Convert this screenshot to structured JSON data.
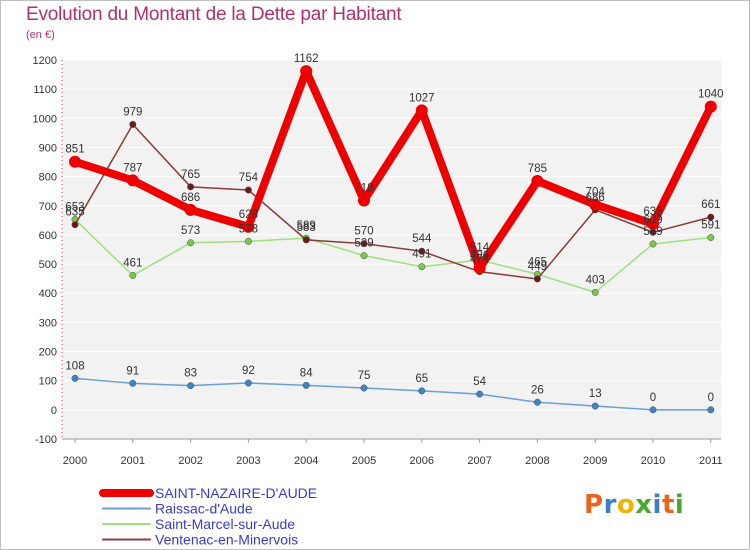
{
  "title": "Evolution du Montant de la Dette par Habitant",
  "unit": "(en €)",
  "logo": {
    "text": "Proxiti",
    "letters": [
      {
        "ch": "P",
        "color": "#e8641b"
      },
      {
        "ch": "r",
        "color": "#3a7fc4"
      },
      {
        "ch": "o",
        "color": "#f0b400"
      },
      {
        "ch": "x",
        "color": "#49a832"
      },
      {
        "ch": "i",
        "color": "#3a7fc4"
      },
      {
        "ch": "t",
        "color": "#e8641b"
      },
      {
        "ch": "i",
        "color": "#49a832"
      }
    ]
  },
  "chart_data": {
    "type": "line",
    "title": "Evolution du Montant de la Dette par Habitant",
    "ylabel": "(en €)",
    "xlabel": "",
    "ylim": [
      -100,
      1200
    ],
    "yticks": [
      -100,
      0,
      100,
      200,
      300,
      400,
      500,
      600,
      700,
      800,
      900,
      1000,
      1100,
      1200
    ],
    "categories": [
      "2000",
      "2001",
      "2002",
      "2003",
      "2004",
      "2005",
      "2006",
      "2007",
      "2008",
      "2009",
      "2010",
      "2011"
    ],
    "grid": "horizontal",
    "legend_position": "bottom-left",
    "series": [
      {
        "name": "SAINT-NAZAIRE-D'AUDE",
        "color": "#ee0000",
        "marker": "#ee0000",
        "width": 8,
        "values": [
          851,
          787,
          686,
          628,
          1162,
          718,
          1027,
          486,
          785,
          704,
          638,
          1040
        ]
      },
      {
        "name": "Raissac-d'Aude",
        "color": "#6b9ed8",
        "marker": "#3d85c6",
        "width": 1.5,
        "values": [
          108,
          91,
          83,
          92,
          84,
          75,
          65,
          54,
          26,
          13,
          0,
          0
        ]
      },
      {
        "name": "Saint-Marcel-sur-Aude",
        "color": "#9ee07a",
        "marker": "#7ac94a",
        "width": 1.5,
        "values": [
          653,
          461,
          573,
          578,
          589,
          529,
          491,
          514,
          465,
          403,
          569,
          591
        ]
      },
      {
        "name": "Ventenac-en-Minervois",
        "color": "#8a3b3b",
        "marker": "#6b1a1a",
        "width": 1.5,
        "values": [
          635,
          979,
          765,
          754,
          583,
          570,
          544,
          474,
          449,
          686,
          609,
          661
        ]
      }
    ]
  }
}
